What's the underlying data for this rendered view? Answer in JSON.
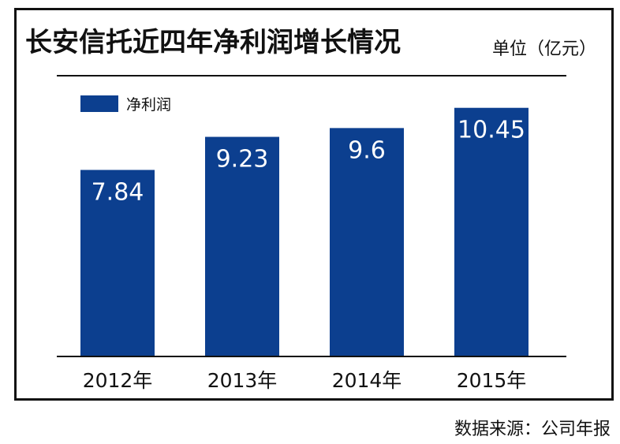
{
  "header": {
    "title": "长安信托近四年净利润增长情况",
    "unit": "单位（亿元）"
  },
  "footer": {
    "source": "数据来源：公司年报"
  },
  "colors": {
    "bar": "#0c3f8f",
    "axis": "#111111"
  },
  "chart_data": {
    "type": "bar",
    "categories": [
      "2012年",
      "2013年",
      "2014年",
      "2015年"
    ],
    "series": [
      {
        "name": "净利润",
        "values": [
          7.84,
          9.23,
          9.6,
          10.45
        ]
      }
    ],
    "data_labels": [
      "7.84",
      "9.23",
      "9.6",
      "10.45"
    ],
    "ylim": [
      0,
      11.8
    ],
    "grid": false,
    "legend": "top-left",
    "title": "长安信托近四年净利润增长情况",
    "xlabel": "",
    "ylabel": ""
  }
}
